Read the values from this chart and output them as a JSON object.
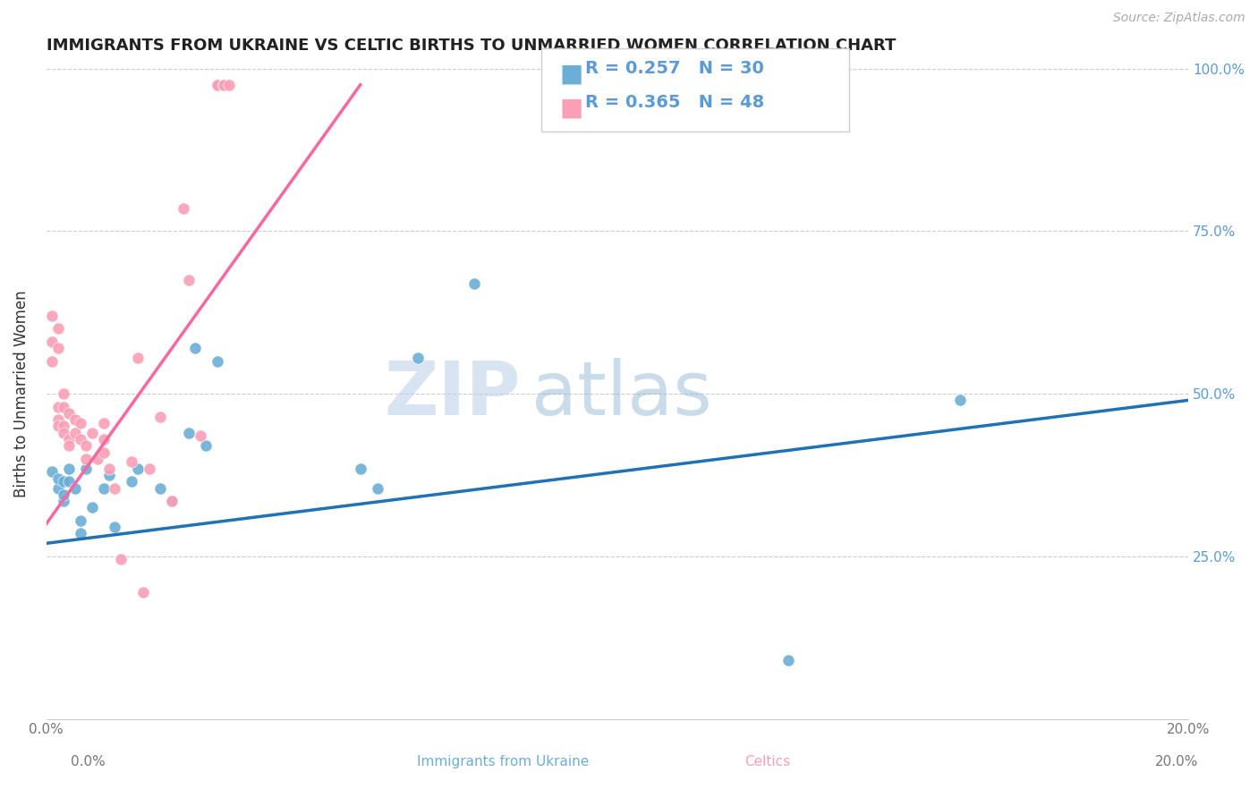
{
  "title": "IMMIGRANTS FROM UKRAINE VS CELTIC BIRTHS TO UNMARRIED WOMEN CORRELATION CHART",
  "source": "Source: ZipAtlas.com",
  "ylabel": "Births to Unmarried Women",
  "blue_color": "#6baed6",
  "pink_color": "#fa9fb5",
  "blue_line_color": "#2171b5",
  "pink_line_color": "#f768a1",
  "watermark_zip": "ZIP",
  "watermark_atlas": "atlas",
  "legend_blue_R": "R = 0.257",
  "legend_blue_N": "N = 30",
  "legend_pink_R": "R = 0.365",
  "legend_pink_N": "N = 48",
  "ukraine_points_x": [
    0.001,
    0.002,
    0.002,
    0.003,
    0.003,
    0.003,
    0.004,
    0.004,
    0.005,
    0.006,
    0.006,
    0.007,
    0.008,
    0.01,
    0.011,
    0.012,
    0.015,
    0.016,
    0.02,
    0.022,
    0.025,
    0.026,
    0.028,
    0.03,
    0.055,
    0.058,
    0.065,
    0.075,
    0.13,
    0.16
  ],
  "ukraine_points_y": [
    0.38,
    0.355,
    0.37,
    0.365,
    0.335,
    0.345,
    0.385,
    0.365,
    0.355,
    0.305,
    0.285,
    0.385,
    0.325,
    0.355,
    0.375,
    0.295,
    0.365,
    0.385,
    0.355,
    0.335,
    0.44,
    0.57,
    0.42,
    0.55,
    0.385,
    0.355,
    0.555,
    0.67,
    0.09,
    0.49
  ],
  "celtics_points_x": [
    0.001,
    0.001,
    0.001,
    0.002,
    0.002,
    0.002,
    0.002,
    0.002,
    0.003,
    0.003,
    0.003,
    0.003,
    0.004,
    0.004,
    0.004,
    0.005,
    0.005,
    0.006,
    0.006,
    0.007,
    0.007,
    0.008,
    0.009,
    0.01,
    0.01,
    0.01,
    0.011,
    0.012,
    0.013,
    0.015,
    0.016,
    0.017,
    0.018,
    0.02,
    0.022,
    0.024,
    0.025,
    0.027,
    0.03,
    0.03,
    0.03,
    0.031,
    0.031,
    0.031,
    0.031,
    0.031,
    0.031,
    0.032
  ],
  "celtics_points_y": [
    0.62,
    0.58,
    0.55,
    0.6,
    0.57,
    0.48,
    0.46,
    0.45,
    0.5,
    0.48,
    0.45,
    0.44,
    0.47,
    0.43,
    0.42,
    0.46,
    0.44,
    0.455,
    0.43,
    0.42,
    0.4,
    0.44,
    0.4,
    0.455,
    0.43,
    0.41,
    0.385,
    0.355,
    0.245,
    0.395,
    0.555,
    0.195,
    0.385,
    0.465,
    0.335,
    0.785,
    0.675,
    0.435,
    0.975,
    0.975,
    0.975,
    0.975,
    0.975,
    0.975,
    0.975,
    0.975,
    0.975,
    0.975
  ],
  "xlim": [
    0,
    0.2
  ],
  "ylim": [
    0,
    1.0
  ],
  "blue_trend_x": [
    0.0,
    0.2
  ],
  "blue_trend_y": [
    0.27,
    0.49
  ],
  "pink_trend_x": [
    0.0,
    0.055
  ],
  "pink_trend_y": [
    0.3,
    0.975
  ]
}
